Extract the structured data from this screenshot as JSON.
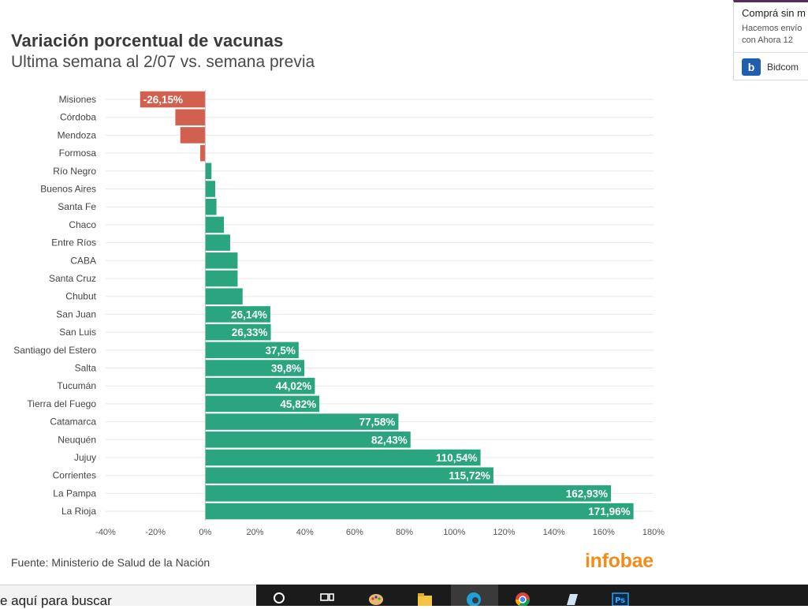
{
  "chart_data": {
    "type": "bar",
    "orientation": "horizontal",
    "title": "Variación porcentual de vacunas",
    "subtitle": "Ultima semana al 2/07 vs. semana previa",
    "categories": [
      "Misiones",
      "Córdoba",
      "Mendoza",
      "Formosa",
      "Río Negro",
      "Buenos Aires",
      "Santa Fe",
      "Chaco",
      "Entre Ríos",
      "CABA",
      "Santa Cruz",
      "Chubut",
      "San Juan",
      "San Luis",
      "Santiago del Estero",
      "Salta",
      "Tucumán",
      "Tierra del Fuego",
      "Catamarca",
      "Neuquén",
      "Jujuy",
      "Corrientes",
      "La Pampa",
      "La Rioja"
    ],
    "values": [
      -26.15,
      -12,
      -10,
      -2,
      2.5,
      4,
      4.5,
      7.5,
      10,
      13,
      13,
      15,
      26.14,
      26.33,
      37.5,
      39.8,
      44.02,
      45.82,
      77.58,
      82.43,
      110.54,
      115.72,
      162.93,
      171.96
    ],
    "data_labels": [
      "-26,15%",
      "",
      "",
      "",
      "",
      "",
      "",
      "",
      "",
      "",
      "",
      "",
      "26,14%",
      "26,33%",
      "37,5%",
      "39,8%",
      "44,02%",
      "45,82%",
      "77,58%",
      "82,43%",
      "110,54%",
      "115,72%",
      "162,93%",
      "171,96%"
    ],
    "xlim": [
      -40,
      180
    ],
    "xticks": [
      -40,
      -20,
      0,
      20,
      40,
      60,
      80,
      100,
      120,
      140,
      160,
      180
    ],
    "xtick_labels": [
      "-40%",
      "-20%",
      "0%",
      "20%",
      "40%",
      "60%",
      "80%",
      "100%",
      "120%",
      "140%",
      "160%",
      "180%"
    ],
    "grid": true,
    "colors": {
      "positive": "#2aa57f",
      "negative": "#d2604e"
    }
  },
  "source": "Fuente: Ministerio de Salud de la Nación",
  "logo": "infobae",
  "ad": {
    "title": "Comprá sin m",
    "line1": "Hacemos envío",
    "line2": "con Ahora 12",
    "brand": "Bidcom"
  },
  "taskbar": {
    "search_text": "e aquí para buscar"
  }
}
